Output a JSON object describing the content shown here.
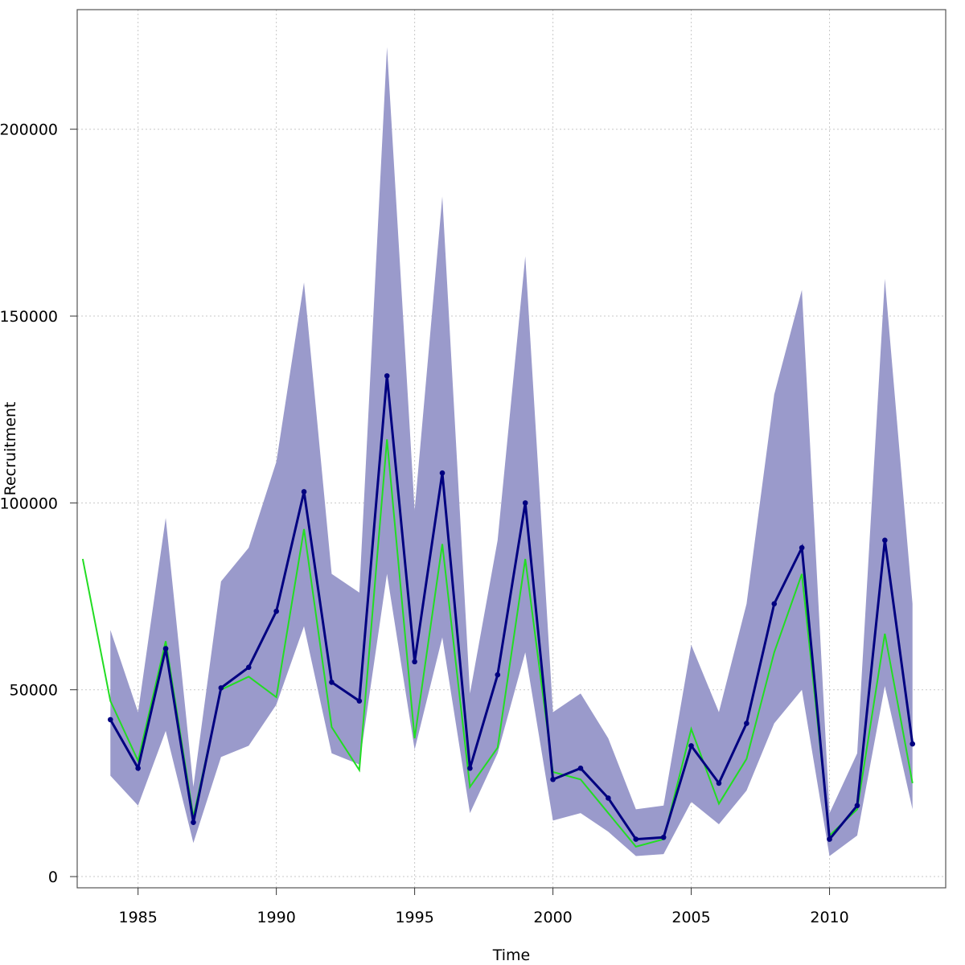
{
  "chart_data": {
    "type": "line",
    "xlabel": "Time",
    "ylabel": "Recruitment",
    "xlim": [
      1982.8,
      2014.2
    ],
    "ylim": [
      -3000,
      232000
    ],
    "x_ticks": [
      1985,
      1990,
      1995,
      2000,
      2005,
      2010
    ],
    "y_ticks": [
      0,
      50000,
      100000,
      150000,
      200000
    ],
    "x_tick_labels": [
      "1985",
      "1990",
      "1995",
      "2000",
      "2005",
      "2010"
    ],
    "y_tick_labels": [
      "0",
      "50000",
      "100000",
      "150000",
      "200000"
    ],
    "grid": true,
    "colors": {
      "band": "#9a9acb",
      "estimate": "#000080",
      "green_line": "#22dd22"
    },
    "series": [
      {
        "kind": "band",
        "x": [
          1984,
          1985,
          1986,
          1987,
          1988,
          1989,
          1990,
          1991,
          1992,
          1993,
          1994,
          1995,
          1996,
          1997,
          1998,
          1999,
          2000,
          2001,
          2002,
          2003,
          2004,
          2005,
          2006,
          2007,
          2008,
          2009,
          2010,
          2011,
          2012,
          2013
        ],
        "upper": [
          66000,
          44000,
          96000,
          24000,
          79000,
          88000,
          111000,
          159000,
          81000,
          76000,
          222000,
          98000,
          182000,
          49000,
          90000,
          166000,
          44000,
          49000,
          37000,
          18000,
          19000,
          62000,
          44000,
          73000,
          129000,
          157000,
          17000,
          33000,
          160000,
          73000
        ],
        "lower": [
          27000,
          19000,
          39000,
          9000,
          32000,
          35000,
          46000,
          67000,
          33000,
          30000,
          81000,
          34000,
          64000,
          17000,
          33000,
          60000,
          15000,
          17000,
          12000,
          5500,
          6000,
          20000,
          14000,
          23000,
          41000,
          50000,
          5500,
          11000,
          51000,
          18000
        ]
      },
      {
        "kind": "estimate",
        "x": [
          1984,
          1985,
          1986,
          1987,
          1988,
          1989,
          1990,
          1991,
          1992,
          1993,
          1994,
          1995,
          1996,
          1997,
          1998,
          1999,
          2000,
          2001,
          2002,
          2003,
          2004,
          2005,
          2006,
          2007,
          2008,
          2009,
          2010,
          2011,
          2012,
          2013
        ],
        "values": [
          42000,
          29000,
          61000,
          14500,
          50500,
          56000,
          71000,
          103000,
          52000,
          47000,
          134000,
          57500,
          108000,
          29000,
          54000,
          100000,
          26000,
          29000,
          21000,
          10000,
          10500,
          35000,
          25000,
          41000,
          73000,
          88000,
          10000,
          19000,
          90000,
          35500
        ]
      },
      {
        "kind": "green",
        "x": [
          1983,
          1984,
          1985,
          1986,
          1987,
          1988,
          1989,
          1990,
          1991,
          1992,
          1993,
          1994,
          1995,
          1996,
          1997,
          1998,
          1999,
          2000,
          2001,
          2002,
          2003,
          2004,
          2005,
          2006,
          2007,
          2008,
          2009,
          2010,
          2011,
          2012,
          2013
        ],
        "values": [
          85000,
          47000,
          31000,
          63000,
          16000,
          50000,
          53500,
          48000,
          93000,
          40000,
          28500,
          117000,
          37000,
          89000,
          24000,
          34500,
          85000,
          28000,
          26000,
          17000,
          8000,
          10000,
          39500,
          19500,
          31500,
          60000,
          81000,
          11000,
          18000,
          65000,
          25000
        ]
      }
    ]
  }
}
